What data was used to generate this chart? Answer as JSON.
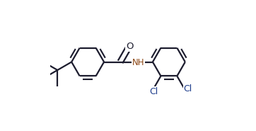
{
  "bg_color": "#ffffff",
  "bond_color": "#1c1c2e",
  "cl_color": "#1a3a8a",
  "nh_color": "#8B4513",
  "o_color": "#1c1c2e",
  "line_width": 1.6,
  "dbo": 0.022,
  "hr": 0.115,
  "figsize": [
    3.62,
    1.85
  ],
  "dpi": 100,
  "xlim": [
    -0.05,
    1.05
  ],
  "ylim": [
    0.05,
    0.97
  ]
}
